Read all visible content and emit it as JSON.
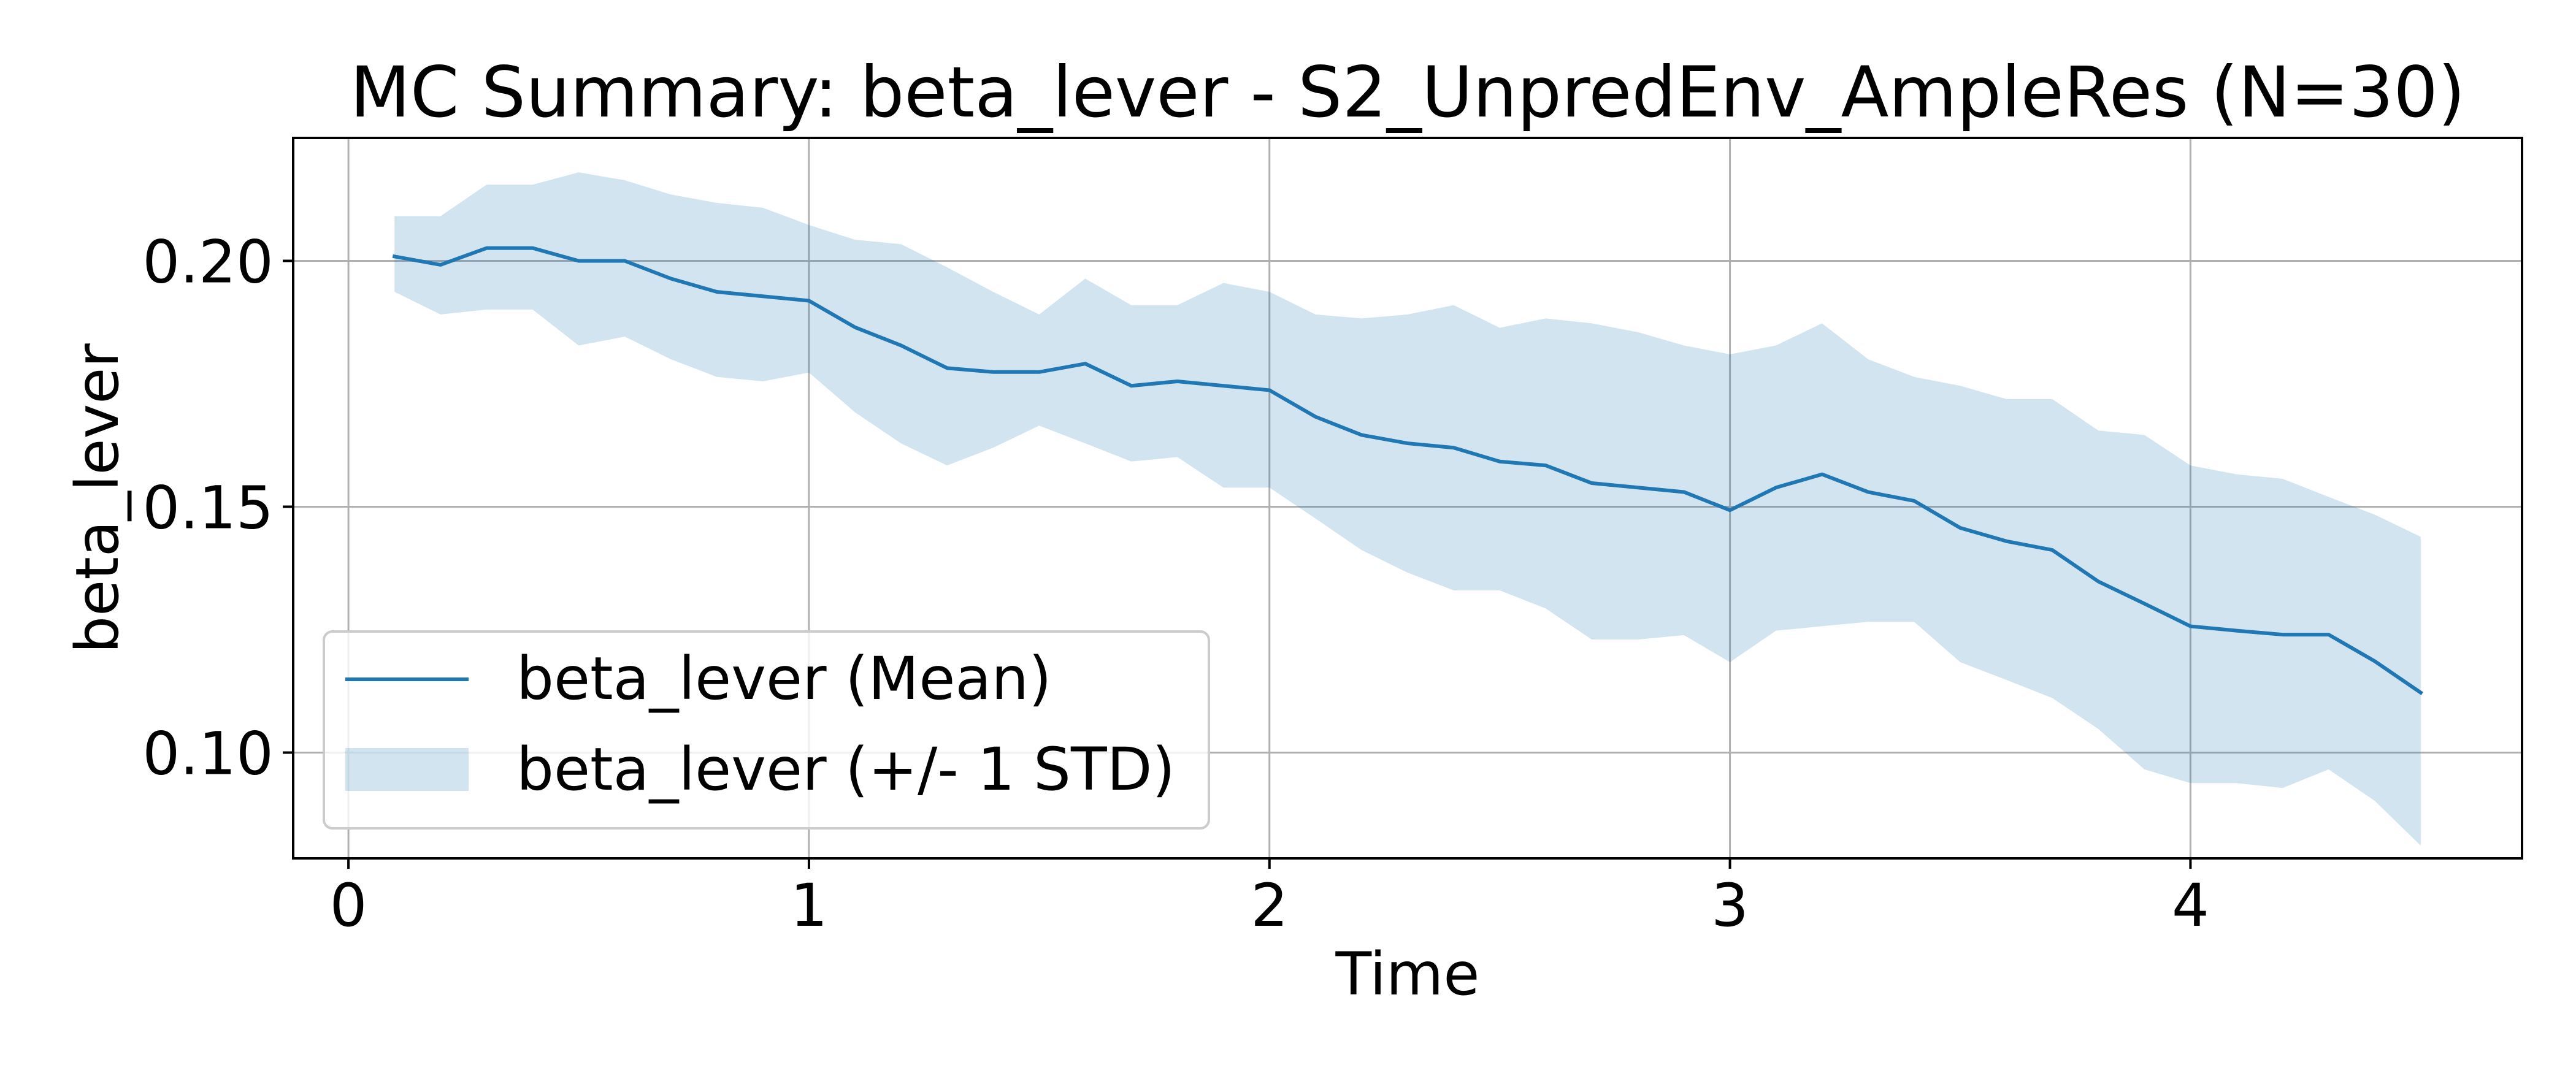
{
  "chart_data": {
    "type": "line",
    "title": "MC Summary: beta_lever - S2_UnpredEnv_AmpleRes (N=30)",
    "xlabel": "Time",
    "ylabel": "beta_lever",
    "xlim": [
      -0.12,
      4.72
    ],
    "ylim": [
      0.0785,
      0.225
    ],
    "x_ticks": [
      0,
      1,
      2,
      3,
      4
    ],
    "x_tick_labels": [
      "0",
      "1",
      "2",
      "3",
      "4"
    ],
    "y_ticks": [
      0.1,
      0.15,
      0.2
    ],
    "y_tick_labels": [
      "0.10",
      "0.15",
      "0.20"
    ],
    "grid": true,
    "legend_position": "lower-left",
    "colors": {
      "mean_line": "#1f77b4",
      "std_band": "#1f77b4",
      "grid": "#b0b0b0"
    },
    "x": [
      0.1,
      0.2,
      0.3,
      0.4,
      0.5,
      0.6,
      0.7,
      0.8,
      0.9,
      1.0,
      1.1,
      1.2,
      1.3,
      1.4,
      1.5,
      1.6,
      1.7,
      1.8,
      1.9,
      2.0,
      2.1,
      2.2,
      2.3,
      2.4,
      2.5,
      2.6,
      2.7,
      2.8,
      2.9,
      3.0,
      3.1,
      3.2,
      3.3,
      3.4,
      3.5,
      3.6,
      3.7,
      3.8,
      3.9,
      4.0,
      4.1,
      4.2,
      4.3,
      4.4,
      4.5
    ],
    "series": [
      {
        "name": "beta_lever (Mean)",
        "kind": "line",
        "values": [
          0.2009,
          0.1992,
          0.2026,
          0.2026,
          0.2,
          0.2,
          0.1964,
          0.1937,
          0.1928,
          0.1919,
          0.1865,
          0.1828,
          0.1782,
          0.1774,
          0.1774,
          0.1791,
          0.1746,
          0.1755,
          0.1746,
          0.1737,
          0.1683,
          0.1646,
          0.1629,
          0.162,
          0.1592,
          0.1584,
          0.1548,
          0.1539,
          0.153,
          0.1493,
          0.1539,
          0.1566,
          0.153,
          0.1512,
          0.1457,
          0.143,
          0.1412,
          0.1348,
          0.1303,
          0.1257,
          0.1248,
          0.124,
          0.124,
          0.1186,
          0.1122
        ]
      },
      {
        "name": "beta_lever (+/- 1 STD)",
        "kind": "band",
        "upper": [
          0.2091,
          0.2091,
          0.2155,
          0.2155,
          0.218,
          0.2164,
          0.2135,
          0.2118,
          0.2108,
          0.2073,
          0.2043,
          0.2034,
          0.1987,
          0.1937,
          0.1891,
          0.1964,
          0.191,
          0.191,
          0.1955,
          0.1937,
          0.1891,
          0.1883,
          0.1891,
          0.191,
          0.1864,
          0.1883,
          0.1873,
          0.1855,
          0.1828,
          0.181,
          0.1828,
          0.1873,
          0.18,
          0.1764,
          0.1746,
          0.1719,
          0.1719,
          0.1655,
          0.1646,
          0.1584,
          0.1566,
          0.1557,
          0.152,
          0.1484,
          0.1439
        ],
        "lower": [
          0.1937,
          0.1891,
          0.1901,
          0.1901,
          0.1828,
          0.1846,
          0.18,
          0.1764,
          0.1755,
          0.1773,
          0.1692,
          0.1629,
          0.1584,
          0.162,
          0.1665,
          0.1629,
          0.1592,
          0.1601,
          0.1539,
          0.1539,
          0.1476,
          0.1412,
          0.1366,
          0.133,
          0.133,
          0.1293,
          0.123,
          0.123,
          0.1239,
          0.1184,
          0.1248,
          0.1257,
          0.1266,
          0.1266,
          0.1184,
          0.1148,
          0.1111,
          0.1048,
          0.0966,
          0.0938,
          0.0938,
          0.0928,
          0.0966,
          0.0902,
          0.0811
        ]
      }
    ]
  }
}
